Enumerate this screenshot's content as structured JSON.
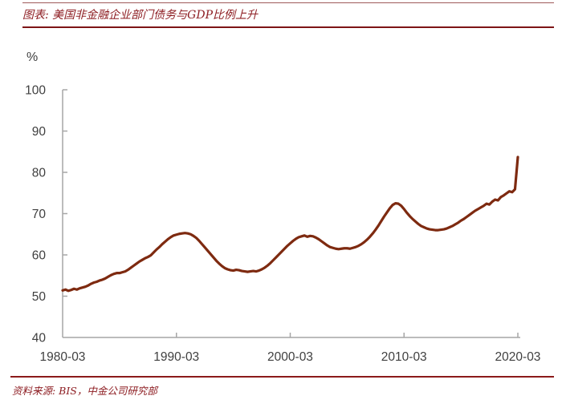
{
  "header": {
    "title": "图表: 美国非金融企业部门债务与GDP比例上升"
  },
  "footer": {
    "source": "资料来源: BIS，中金公司研究部"
  },
  "colors": {
    "accent_red": "#8d1d22",
    "rule_red": "#7e1416",
    "line_color": "#7e2a10",
    "axis_gray": "#a6a6a6",
    "tick_text": "#3f3f3f"
  },
  "chart_data": {
    "type": "line",
    "title": "图表: 美国非金融企业部门债务与GDP比例上升",
    "unit_label": "%",
    "ylabel": "%",
    "xlabel": "",
    "ylim": [
      40,
      100
    ],
    "y_ticks": [
      100,
      90,
      80,
      70,
      60,
      50,
      40
    ],
    "x_tick_labels": [
      "1980-03",
      "1990-03",
      "2000-03",
      "2010-03",
      "2020-03"
    ],
    "x_start": "1980-03",
    "x_end": "2020-03",
    "frequency": "quarterly",
    "grid": false,
    "legend": "none",
    "line_color": "#7e2a10",
    "values": [
      51.4,
      51.6,
      51.3,
      51.5,
      51.8,
      51.6,
      51.9,
      52.1,
      52.3,
      52.6,
      53.0,
      53.3,
      53.5,
      53.8,
      54.0,
      54.3,
      54.7,
      55.1,
      55.4,
      55.6,
      55.6,
      55.8,
      56.0,
      56.4,
      56.9,
      57.4,
      57.9,
      58.4,
      58.8,
      59.2,
      59.5,
      59.9,
      60.6,
      61.3,
      61.9,
      62.6,
      63.2,
      63.8,
      64.3,
      64.7,
      64.9,
      65.1,
      65.2,
      65.3,
      65.2,
      65.0,
      64.6,
      64.1,
      63.4,
      62.6,
      61.8,
      61.0,
      60.2,
      59.4,
      58.6,
      57.9,
      57.3,
      56.8,
      56.5,
      56.3,
      56.2,
      56.4,
      56.3,
      56.1,
      56.0,
      55.9,
      56.0,
      56.1,
      56.0,
      56.2,
      56.5,
      56.9,
      57.4,
      58.0,
      58.7,
      59.4,
      60.1,
      60.8,
      61.5,
      62.2,
      62.8,
      63.4,
      63.9,
      64.3,
      64.5,
      64.7,
      64.4,
      64.6,
      64.5,
      64.2,
      63.8,
      63.3,
      62.8,
      62.3,
      61.9,
      61.7,
      61.5,
      61.4,
      61.5,
      61.6,
      61.6,
      61.5,
      61.7,
      61.9,
      62.2,
      62.6,
      63.1,
      63.7,
      64.4,
      65.2,
      66.1,
      67.1,
      68.2,
      69.3,
      70.3,
      71.3,
      72.1,
      72.5,
      72.4,
      71.9,
      71.1,
      70.2,
      69.4,
      68.7,
      68.1,
      67.5,
      67.0,
      66.7,
      66.4,
      66.2,
      66.1,
      66.0,
      66.0,
      66.1,
      66.2,
      66.4,
      66.7,
      67.0,
      67.4,
      67.8,
      68.3,
      68.7,
      69.2,
      69.7,
      70.2,
      70.7,
      71.1,
      71.5,
      71.9,
      72.4,
      72.2,
      72.9,
      73.4,
      73.2,
      74.0,
      74.4,
      74.9,
      75.4,
      75.2,
      75.9,
      83.7
    ]
  }
}
